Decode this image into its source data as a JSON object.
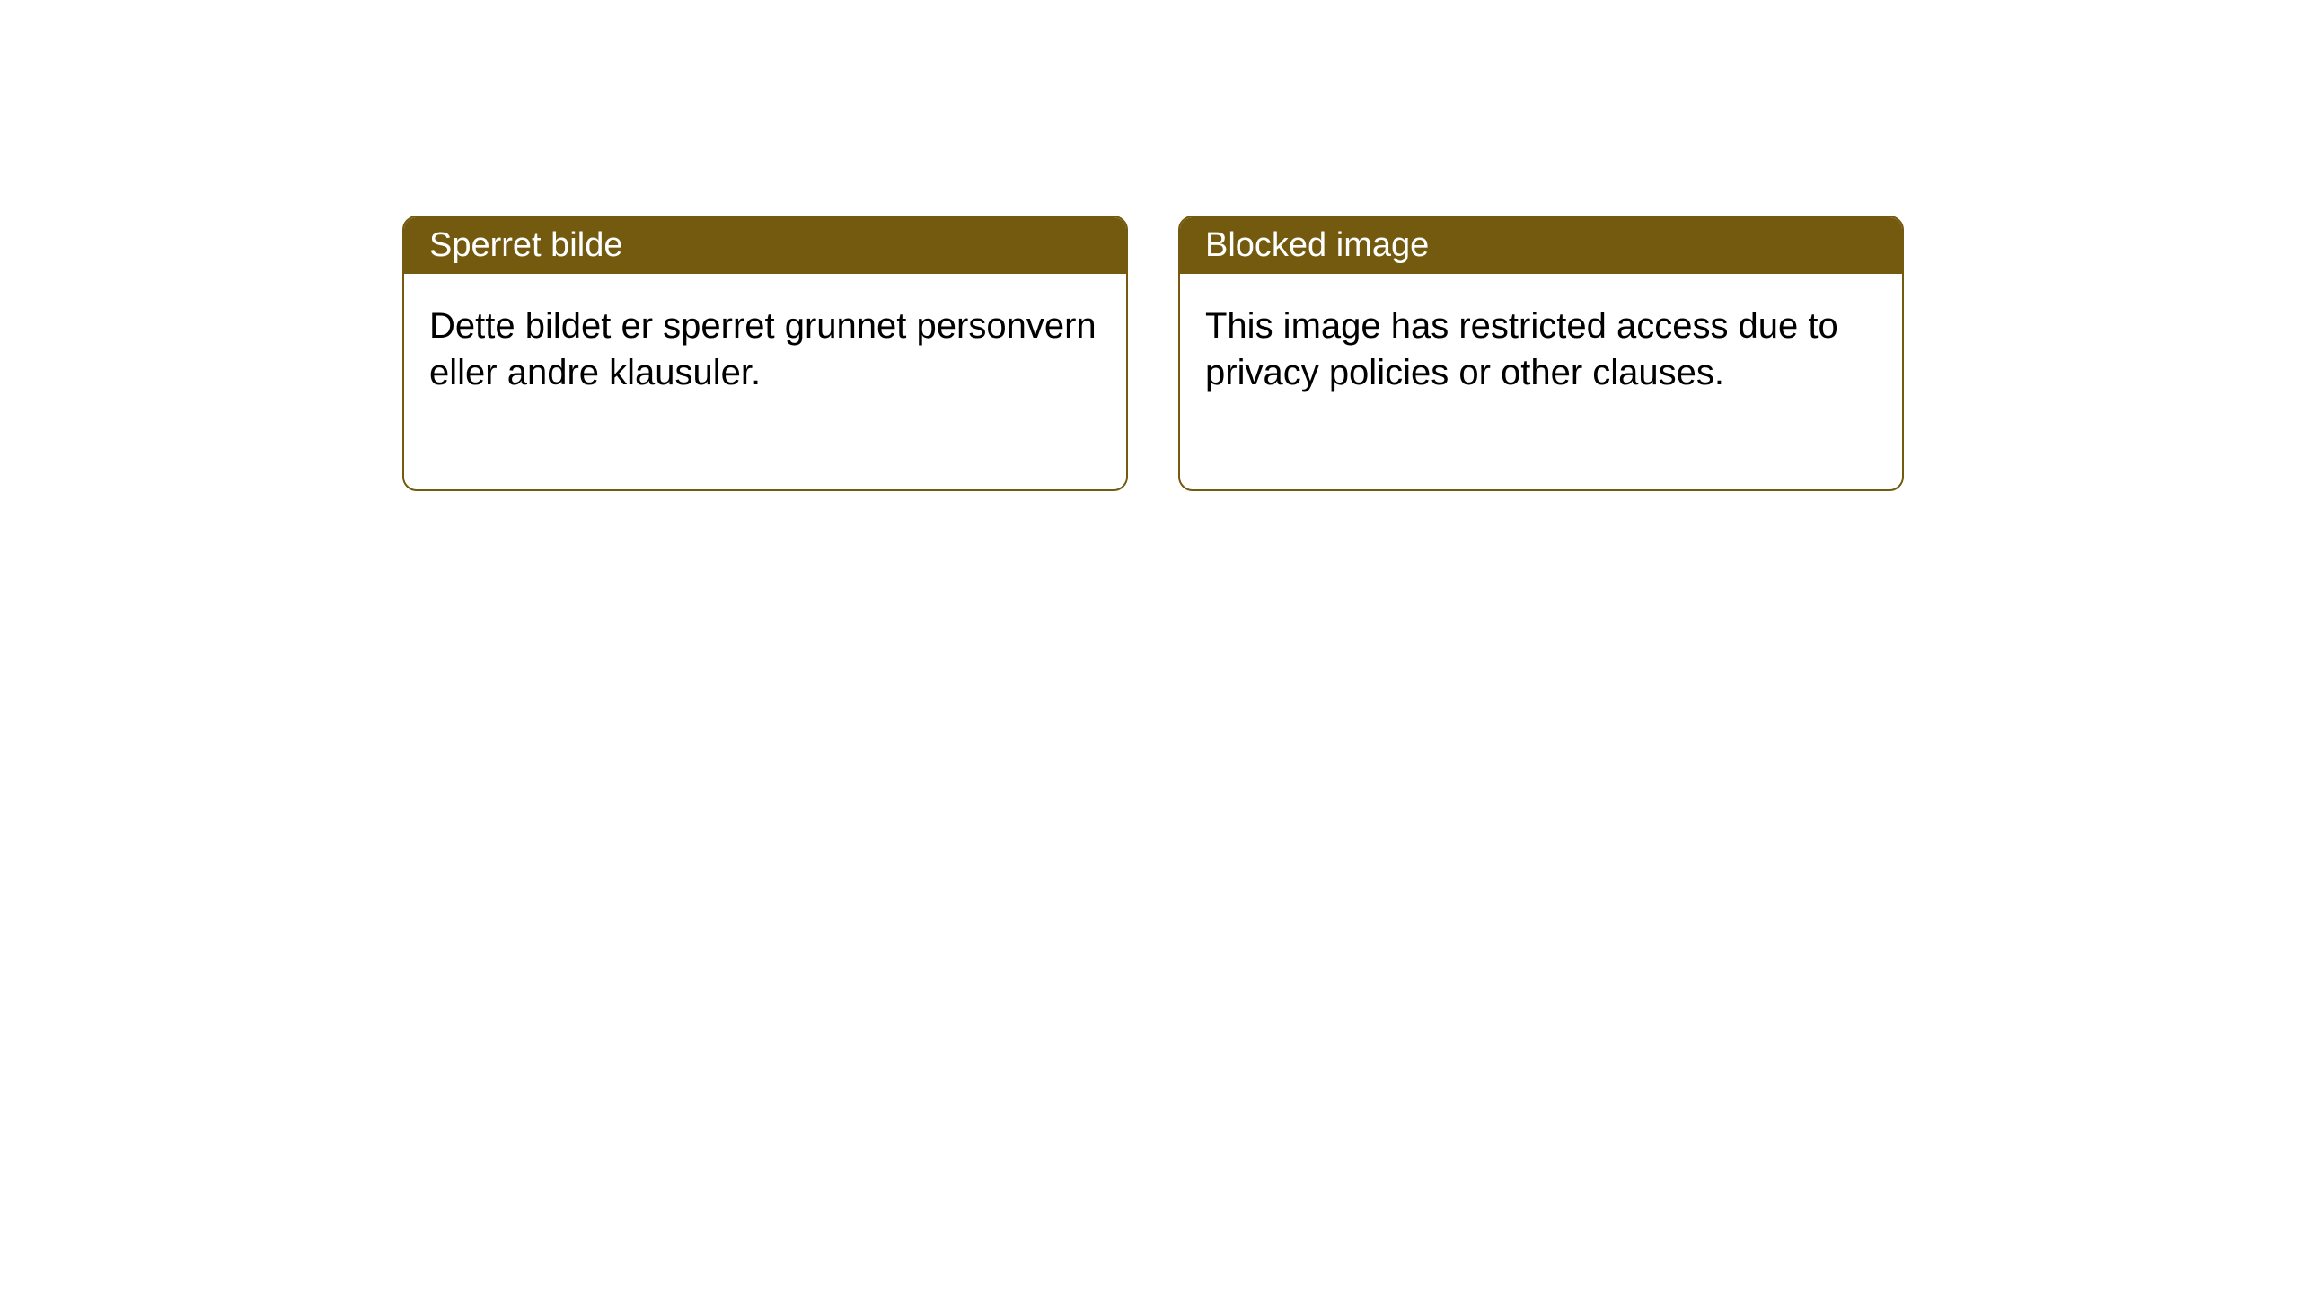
{
  "cards": [
    {
      "title": "Sperret bilde",
      "body": "Dette bildet er sperret grunnet personvern eller andre klausuler."
    },
    {
      "title": "Blocked image",
      "body": "This image has restricted access due to privacy policies or other clauses."
    }
  ],
  "style": {
    "header_background": "#735a0f",
    "header_text_color": "#ffffff",
    "border_color": "#735a0f",
    "body_background": "#ffffff",
    "body_text_color": "#000000",
    "border_radius": 16,
    "header_font_size": 38,
    "body_font_size": 40
  }
}
